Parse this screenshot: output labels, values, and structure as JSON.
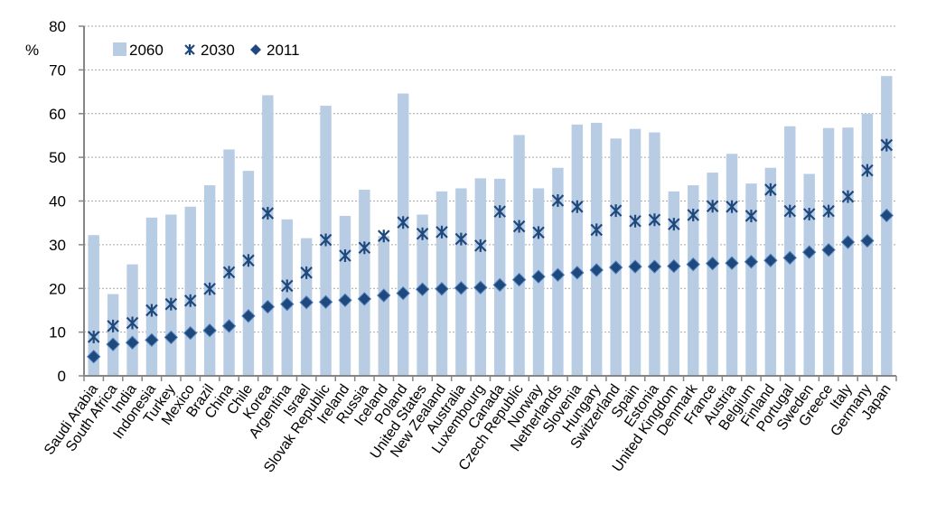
{
  "chart_data": {
    "type": "bar",
    "title": "",
    "xlabel": "",
    "ylabel": "%",
    "ylim": [
      0,
      80
    ],
    "yticks": [
      "0",
      "10",
      "20",
      "30",
      "40",
      "50",
      "60",
      "70",
      "80"
    ],
    "grid": true,
    "legend_position": "top-left",
    "legend": [
      {
        "name": "2060",
        "marker": "bar"
      },
      {
        "name": "2030",
        "marker": "asterisk"
      },
      {
        "name": "2011",
        "marker": "diamond"
      }
    ],
    "categories": [
      "Saudi Arabia",
      "South Africa",
      "India",
      "Indonesia",
      "Turkey",
      "Mexico",
      "Brazil",
      "China",
      "Chile",
      "Korea",
      "Argentina",
      "Israel",
      "Slovak Republic",
      "Ireland",
      "Russia",
      "Iceland",
      "Poland",
      "United States",
      "New Zealand",
      "Australia",
      "Luxembourg",
      "Canada",
      "Czech Republic",
      "Norway",
      "Netherlands",
      "Slovenia",
      "Hungary",
      "Switzerland",
      "Spain",
      "Estonia",
      "United Kingdom",
      "Denmark",
      "France",
      "Austria",
      "Belgium",
      "Finland",
      "Portugal",
      "Sweden",
      "Greece",
      "Italy",
      "Germany",
      "Japan"
    ],
    "series": [
      {
        "name": "2060",
        "type": "bar",
        "color": "#b8cce4",
        "values": [
          32.2,
          18.7,
          25.5,
          36.2,
          36.9,
          38.7,
          43.6,
          51.8,
          46.9,
          64.2,
          35.8,
          31.5,
          61.8,
          36.6,
          42.6,
          32.0,
          64.6,
          36.9,
          42.2,
          42.9,
          45.2,
          45.1,
          55.1,
          42.9,
          47.6,
          57.5,
          57.9,
          54.3,
          56.5,
          55.7,
          42.2,
          43.6,
          46.5,
          50.8,
          44.0,
          47.6,
          57.1,
          46.2,
          56.7,
          56.8,
          60.0,
          68.6
        ]
      },
      {
        "name": "2030",
        "type": "marker",
        "color": "#1f497d",
        "values": [
          8.9,
          11.4,
          12.1,
          15.0,
          16.4,
          17.2,
          19.9,
          23.7,
          26.4,
          37.2,
          20.6,
          23.6,
          31.1,
          27.5,
          29.3,
          32.0,
          35.1,
          32.5,
          32.9,
          31.3,
          29.8,
          37.6,
          34.2,
          32.8,
          40.1,
          38.7,
          33.4,
          37.8,
          35.4,
          35.7,
          34.7,
          36.8,
          38.8,
          38.7,
          36.6,
          42.6,
          37.7,
          37.0,
          37.7,
          41.0,
          47.0,
          52.8
        ]
      },
      {
        "name": "2011",
        "type": "marker",
        "color": "#1f497d",
        "values": [
          4.4,
          7.2,
          7.6,
          8.2,
          8.8,
          9.8,
          10.4,
          11.4,
          13.7,
          15.8,
          16.4,
          16.8,
          16.9,
          17.3,
          17.6,
          18.4,
          18.9,
          19.8,
          19.9,
          20.1,
          20.2,
          20.8,
          22.0,
          22.7,
          23.1,
          23.6,
          24.2,
          24.8,
          25.0,
          25.0,
          25.1,
          25.5,
          25.7,
          25.8,
          26.1,
          26.4,
          27.0,
          28.3,
          28.8,
          30.6,
          30.9,
          36.7
        ]
      }
    ]
  }
}
